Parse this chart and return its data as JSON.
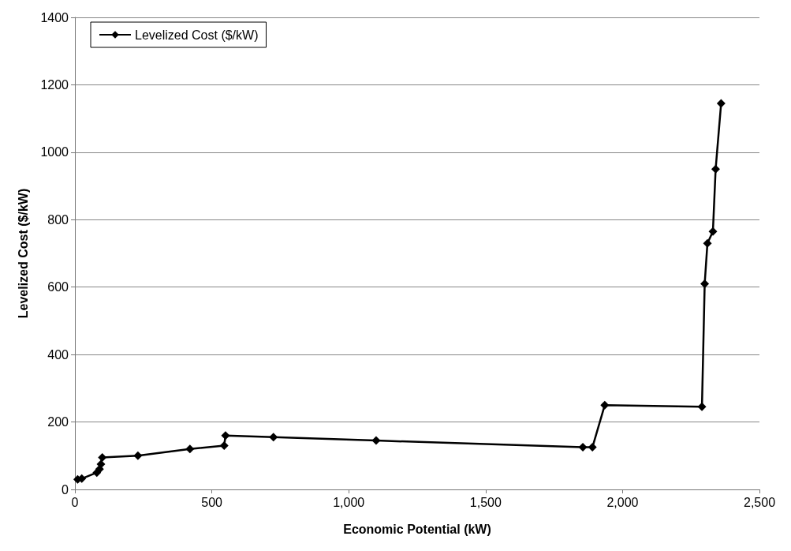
{
  "chart_data": {
    "type": "line",
    "xlabel": "Economic Potential (kW)",
    "ylabel": "Levelized Cost ($/kW)",
    "series": [
      {
        "name": "Levelized Cost ($/kW)",
        "color": "#000000",
        "x": [
          10,
          25,
          80,
          90,
          95,
          100,
          230,
          420,
          545,
          550,
          725,
          1100,
          1855,
          1890,
          1935,
          2290,
          2300,
          2310,
          2330,
          2340,
          2360
        ],
        "values": [
          30,
          32,
          50,
          60,
          75,
          95,
          100,
          120,
          130,
          160,
          155,
          145,
          125,
          125,
          250,
          245,
          610,
          730,
          765,
          950,
          1145
        ]
      }
    ],
    "xlim": [
      0,
      2500
    ],
    "xticks": [
      0,
      {
        "value": 500,
        "label": "500"
      },
      {
        "value": 1000,
        "label": "1,000"
      },
      {
        "value": 1500,
        "label": "1,500"
      },
      {
        "value": 2000,
        "label": "2,000"
      },
      {
        "value": 2500,
        "label": "2,500"
      }
    ],
    "ylim": [
      0,
      1400
    ],
    "yticks": [
      0,
      200,
      400,
      600,
      800,
      1000,
      1200,
      1400
    ],
    "grid": "y",
    "legend": "top left",
    "marker": "diamond",
    "line_style": "solid"
  }
}
